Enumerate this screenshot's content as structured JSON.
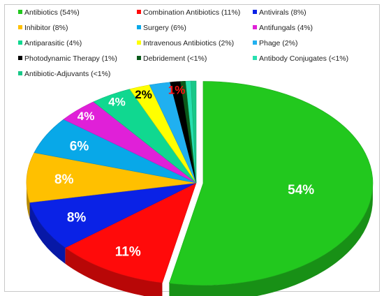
{
  "chart_data": {
    "type": "pie",
    "categories": [
      "Antibiotics",
      "Combination Antibiotics",
      "Antivirals",
      "Inhibitor",
      "Surgery",
      "Antifungals",
      "Antiparasitic",
      "Intravenous Antibiotics",
      "Phage",
      "Photodynamic Therapy",
      "Debridement",
      "Antibody Conjugates",
      "Antibiotic-Adjuvants"
    ],
    "values": [
      54,
      11,
      8,
      8,
      6,
      4,
      4,
      2,
      2,
      1,
      0.5,
      0.5,
      0.5
    ],
    "legend": [
      "Antibiotics (54%)",
      "Combination Antibiotics (11%)",
      "Antivirals (8%)",
      "Inhibitor (8%)",
      "Surgery (6%)",
      "Antifungals (4%)",
      "Antiparasitic (4%)",
      "Intravenous Antibiotics (2%)",
      "Phage (2%)",
      "Photodynamic Therapy (1%)",
      "Debridement (<1%)",
      "Antibody Conjugates (<1%)",
      "Antibiotic-Adjuvants (<1%)"
    ],
    "labels": [
      "54%",
      "11%",
      "8%",
      "8%",
      "6%",
      "4%",
      "4%",
      "2%",
      "",
      "1%",
      "",
      "",
      ""
    ],
    "colors": [
      "#22c81e",
      "#ff0a0a",
      "#0a22e6",
      "#ffc000",
      "#08a8e8",
      "#e020d8",
      "#10d890",
      "#ffff00",
      "#20b0f0",
      "#000000",
      "#0a5a1a",
      "#28e0b0",
      "#18c888"
    ],
    "label_colors": [
      "#ffffff",
      "#ffffff",
      "#ffffff",
      "#ffffff",
      "#ffffff",
      "#ffffff",
      "#ffffff",
      "#000000",
      "#000000",
      "#ff1010",
      "#000000",
      "#000000",
      "#000000"
    ],
    "legend_placement": "top"
  }
}
